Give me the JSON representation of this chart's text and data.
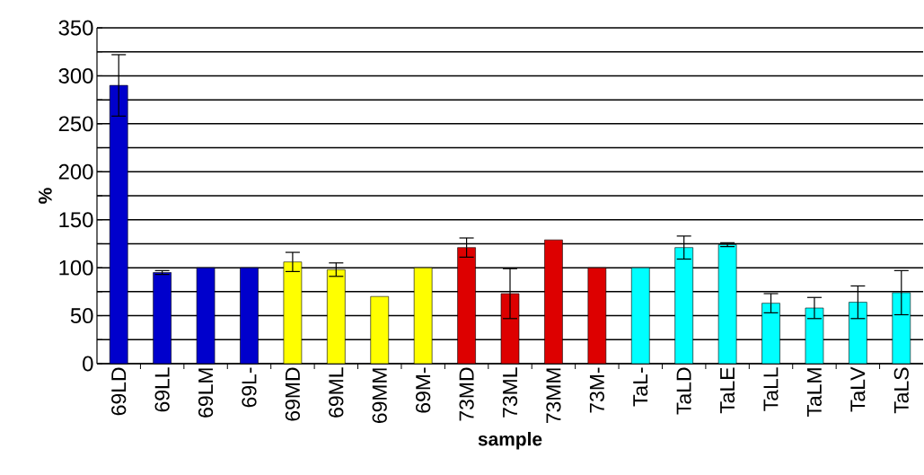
{
  "chart_data": {
    "type": "bar",
    "xlabel": "sample",
    "ylabel": "%",
    "categories": [
      "69LD",
      "69LL",
      "69LM",
      "69L-",
      "69MD",
      "69ML",
      "69MM",
      "69M-",
      "73MD",
      "73ML",
      "73MM",
      "73M-",
      "TaL-",
      "TaLD",
      "TaLE",
      "TaLL",
      "TaLM",
      "TaLV",
      "TaLS"
    ],
    "values": [
      290,
      95,
      100,
      100,
      106,
      98,
      70,
      100,
      121,
      73,
      129,
      100,
      100,
      121,
      124,
      63,
      58,
      64,
      74
    ],
    "errors": [
      32,
      2,
      null,
      null,
      10,
      7,
      null,
      null,
      10,
      26,
      null,
      null,
      null,
      12,
      2,
      10,
      11,
      17,
      23
    ],
    "colors": [
      "#0000cc",
      "#0000cc",
      "#0000cc",
      "#0000cc",
      "#ffff00",
      "#ffff00",
      "#ffff00",
      "#ffff00",
      "#dd0000",
      "#dd0000",
      "#dd0000",
      "#dd0000",
      "#00ffff",
      "#00ffff",
      "#00ffff",
      "#00ffff",
      "#00ffff",
      "#00ffff",
      "#00ffff"
    ],
    "ylim": [
      0,
      350
    ],
    "yticks": [
      0,
      {
        "value": 25,
        "label": null
      },
      50,
      {
        "value": 75,
        "label": null
      },
      100,
      {
        "value": 125,
        "label": null
      },
      150,
      {
        "value": 175,
        "label": null
      },
      200,
      {
        "value": 225,
        "label": null
      },
      250,
      {
        "value": 275,
        "label": null
      },
      300,
      {
        "value": 325,
        "label": null
      },
      350
    ],
    "grid": "y"
  }
}
